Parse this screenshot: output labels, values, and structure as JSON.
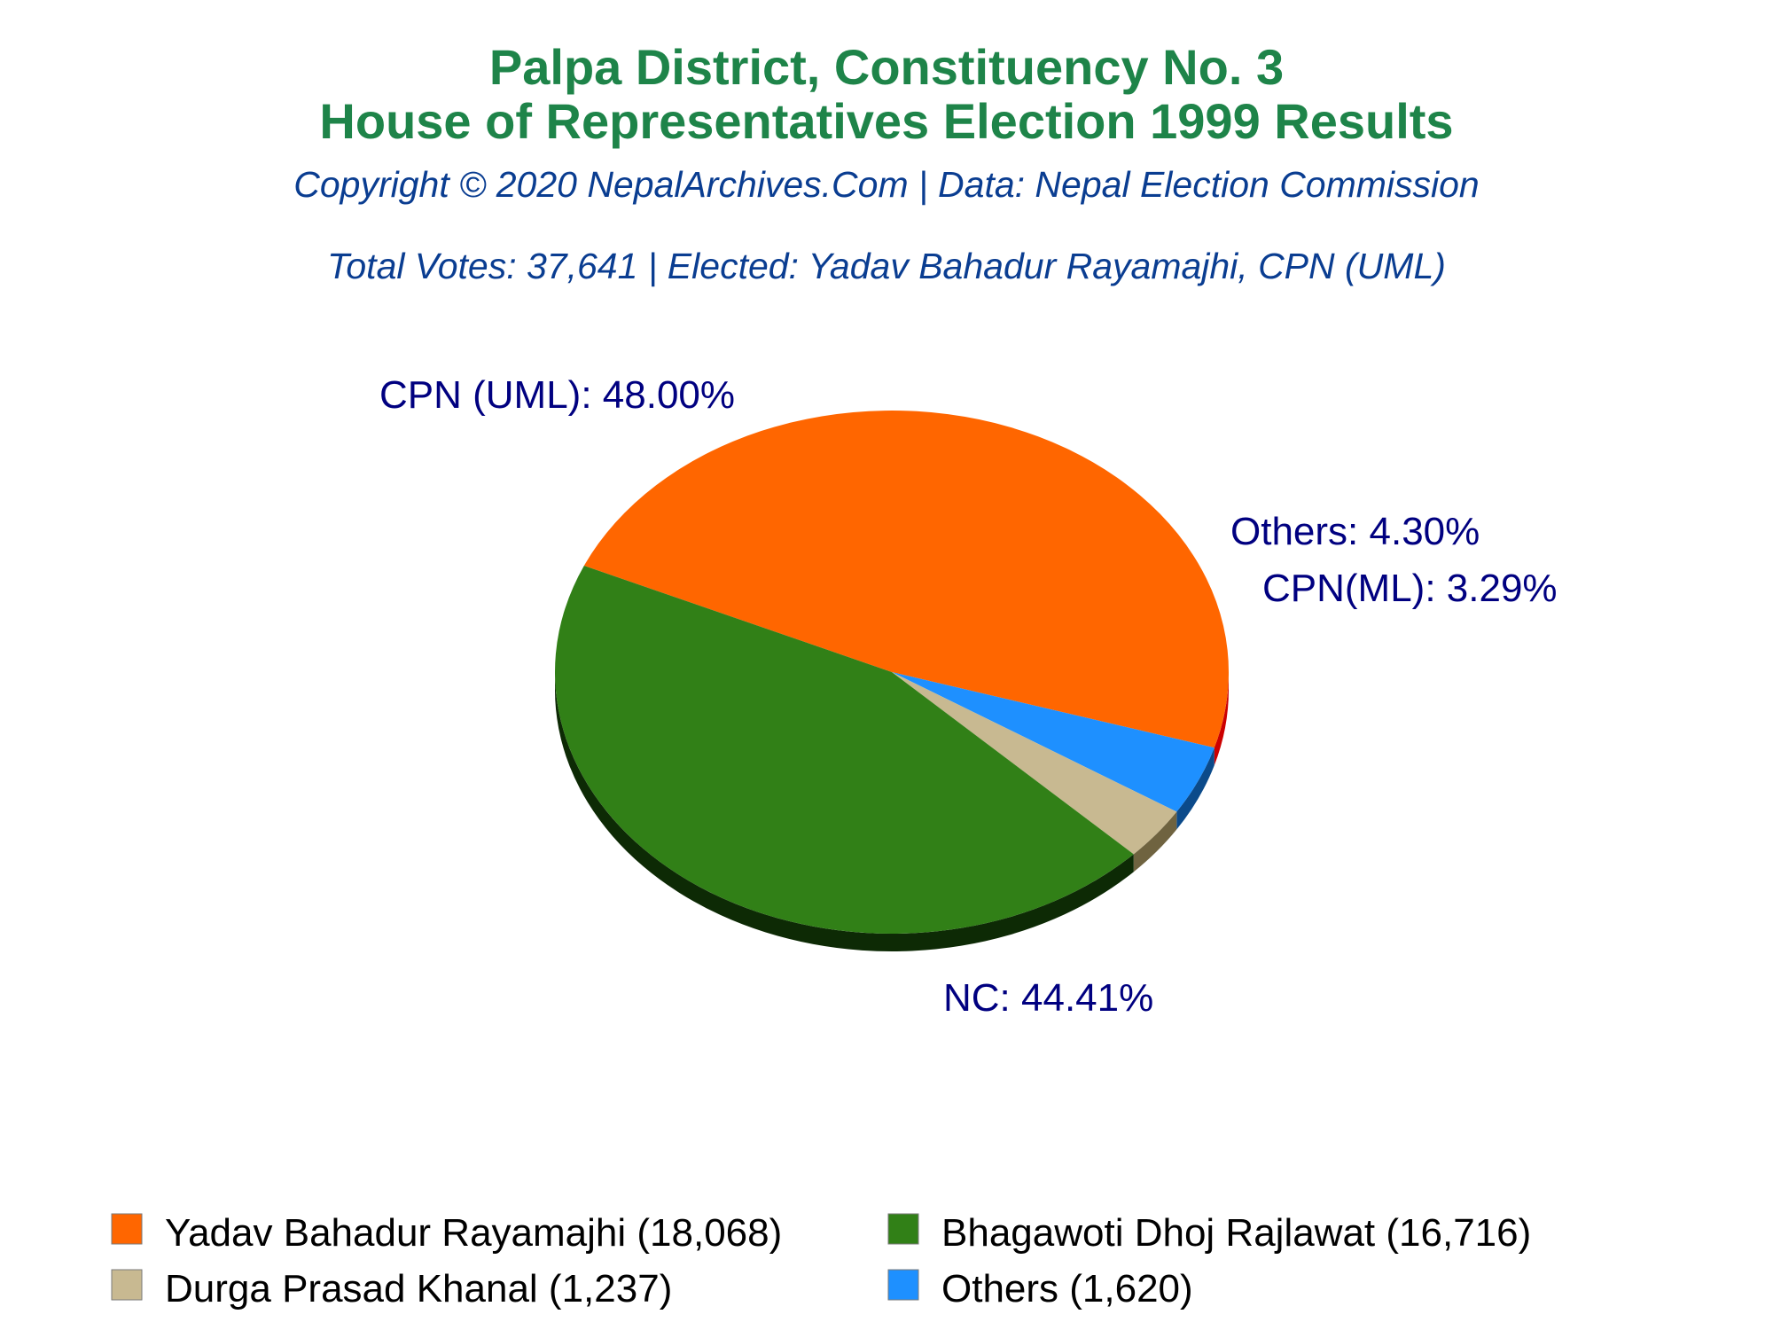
{
  "chart_data": {
    "type": "pie",
    "title": "Palpa District, Constituency No. 3",
    "title2": "House of Representatives Election 1999 Results",
    "subtitle": "Copyright © 2020 NepalArchives.Com | Data: Nepal Election Commission",
    "subtitle2": "Total Votes: 37,641 | Elected: Yadav Bahadur Rayamajhi, CPN (UML)",
    "legend_position": "bottom",
    "slices": [
      {
        "label": "CPN (UML): 48.00%",
        "value": 48.0,
        "color": "#ff6600",
        "side_color": "#cc0000"
      },
      {
        "label": "Others: 4.30%",
        "value": 4.3,
        "color": "#1e90ff",
        "side_color": "#0b4a8a"
      },
      {
        "label": "CPN(ML): 3.29%",
        "value": 3.29,
        "color": "#c8b991",
        "side_color": "#6f6340"
      },
      {
        "label": "NC: 44.41%",
        "value": 44.41,
        "color": "#318017",
        "side_color": "#0d2a05"
      }
    ],
    "legend": [
      {
        "label": "Yadav Bahadur Rayamajhi (18,068)",
        "color": "#ff6600"
      },
      {
        "label": "Bhagawoti Dhoj Rajlawat (16,716)",
        "color": "#318017"
      },
      {
        "label": "Durga Prasad Khanal (1,237)",
        "color": "#c8b991"
      },
      {
        "label": "Others (1,620)",
        "color": "#1e90ff"
      }
    ]
  }
}
